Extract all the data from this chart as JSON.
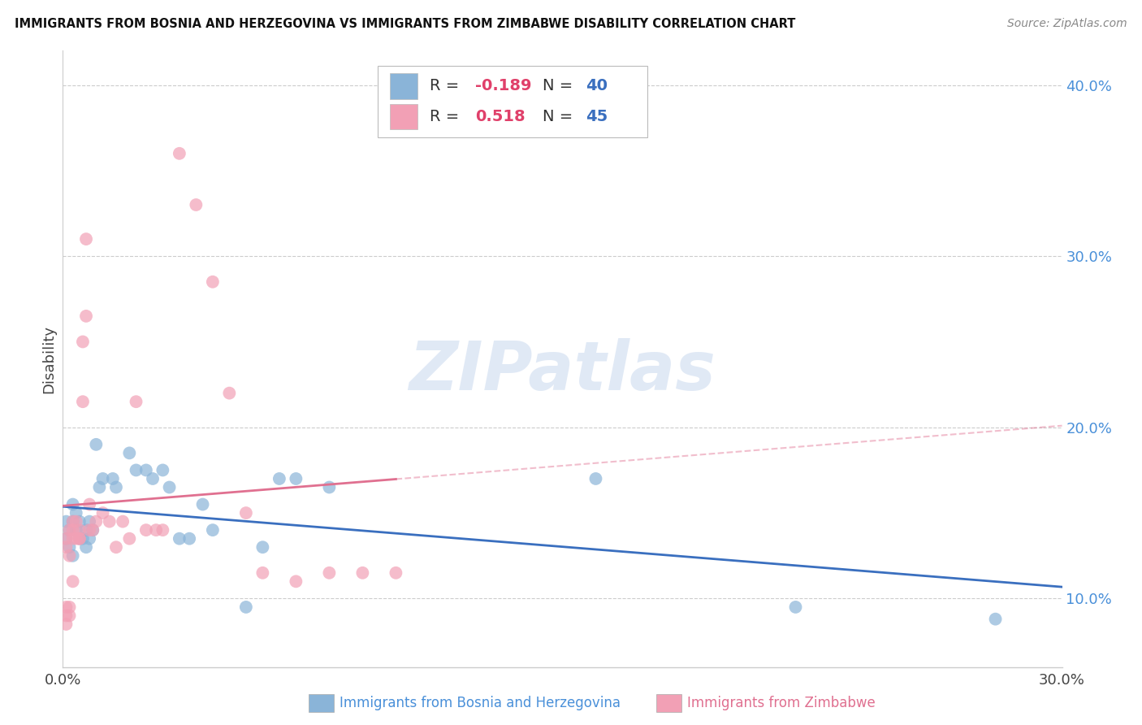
{
  "title": "IMMIGRANTS FROM BOSNIA AND HERZEGOVINA VS IMMIGRANTS FROM ZIMBABWE DISABILITY CORRELATION CHART",
  "source": "Source: ZipAtlas.com",
  "xlabel_bosnia": "Immigrants from Bosnia and Herzegovina",
  "xlabel_zimbabwe": "Immigrants from Zimbabwe",
  "ylabel": "Disability",
  "xlim": [
    0.0,
    0.3
  ],
  "ylim": [
    0.06,
    0.42
  ],
  "x_ticks": [
    0.0,
    0.05,
    0.1,
    0.15,
    0.2,
    0.25,
    0.3
  ],
  "x_tick_labels": [
    "0.0%",
    "",
    "",
    "",
    "",
    "",
    "30.0%"
  ],
  "y_ticks_right": [
    0.1,
    0.2,
    0.3,
    0.4
  ],
  "y_tick_labels_right": [
    "10.0%",
    "20.0%",
    "30.0%",
    "40.0%"
  ],
  "R_bosnia": -0.189,
  "N_bosnia": 40,
  "R_zimbabwe": 0.518,
  "N_zimbabwe": 45,
  "color_bosnia": "#8ab4d8",
  "color_zimbabwe": "#f2a0b5",
  "line_color_bosnia": "#3a6fbf",
  "line_color_zimbabwe": "#e07090",
  "bosnia_x": [
    0.001,
    0.001,
    0.002,
    0.002,
    0.003,
    0.003,
    0.003,
    0.004,
    0.004,
    0.005,
    0.005,
    0.006,
    0.007,
    0.007,
    0.008,
    0.008,
    0.009,
    0.01,
    0.011,
    0.012,
    0.015,
    0.016,
    0.02,
    0.022,
    0.025,
    0.027,
    0.03,
    0.032,
    0.035,
    0.038,
    0.042,
    0.045,
    0.055,
    0.06,
    0.065,
    0.07,
    0.08,
    0.16,
    0.22,
    0.28
  ],
  "bosnia_y": [
    0.135,
    0.145,
    0.14,
    0.13,
    0.155,
    0.145,
    0.125,
    0.15,
    0.14,
    0.135,
    0.145,
    0.135,
    0.14,
    0.13,
    0.145,
    0.135,
    0.14,
    0.19,
    0.165,
    0.17,
    0.17,
    0.165,
    0.185,
    0.175,
    0.175,
    0.17,
    0.175,
    0.165,
    0.135,
    0.135,
    0.155,
    0.14,
    0.095,
    0.13,
    0.17,
    0.17,
    0.165,
    0.17,
    0.095,
    0.088
  ],
  "zimbabwe_x": [
    0.001,
    0.001,
    0.001,
    0.001,
    0.001,
    0.002,
    0.002,
    0.002,
    0.002,
    0.003,
    0.003,
    0.003,
    0.003,
    0.004,
    0.004,
    0.005,
    0.005,
    0.005,
    0.006,
    0.006,
    0.007,
    0.007,
    0.008,
    0.008,
    0.009,
    0.01,
    0.012,
    0.014,
    0.016,
    0.018,
    0.02,
    0.022,
    0.025,
    0.028,
    0.03,
    0.035,
    0.04,
    0.045,
    0.05,
    0.055,
    0.06,
    0.07,
    0.08,
    0.09,
    0.1
  ],
  "zimbabwe_y": [
    0.13,
    0.135,
    0.095,
    0.09,
    0.085,
    0.14,
    0.125,
    0.095,
    0.09,
    0.14,
    0.135,
    0.145,
    0.11,
    0.135,
    0.145,
    0.135,
    0.135,
    0.14,
    0.25,
    0.215,
    0.265,
    0.31,
    0.14,
    0.155,
    0.14,
    0.145,
    0.15,
    0.145,
    0.13,
    0.145,
    0.135,
    0.215,
    0.14,
    0.14,
    0.14,
    0.36,
    0.33,
    0.285,
    0.22,
    0.15,
    0.115,
    0.11,
    0.115,
    0.115,
    0.115
  ],
  "watermark": "ZIPatlas",
  "background_color": "#ffffff",
  "grid_color": "#cccccc"
}
